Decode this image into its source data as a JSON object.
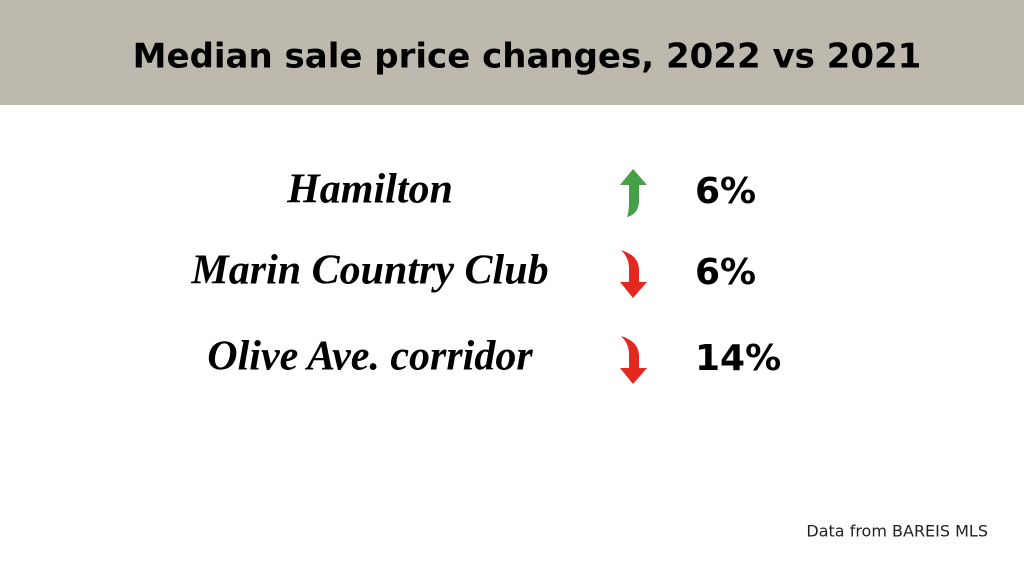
{
  "header": {
    "title": "Median sale price changes, 2022 vs 2021"
  },
  "rows": [
    {
      "name": "Hamilton",
      "direction": "up",
      "color": "#43a047",
      "change": "6%"
    },
    {
      "name": "Marin Country Club",
      "direction": "down",
      "color": "#e5281f",
      "change": "6%"
    },
    {
      "name": "Olive Ave. corridor",
      "direction": "down",
      "color": "#e5281f",
      "change": "14%"
    }
  ],
  "footer": {
    "source": "Data from BAREIS MLS"
  }
}
